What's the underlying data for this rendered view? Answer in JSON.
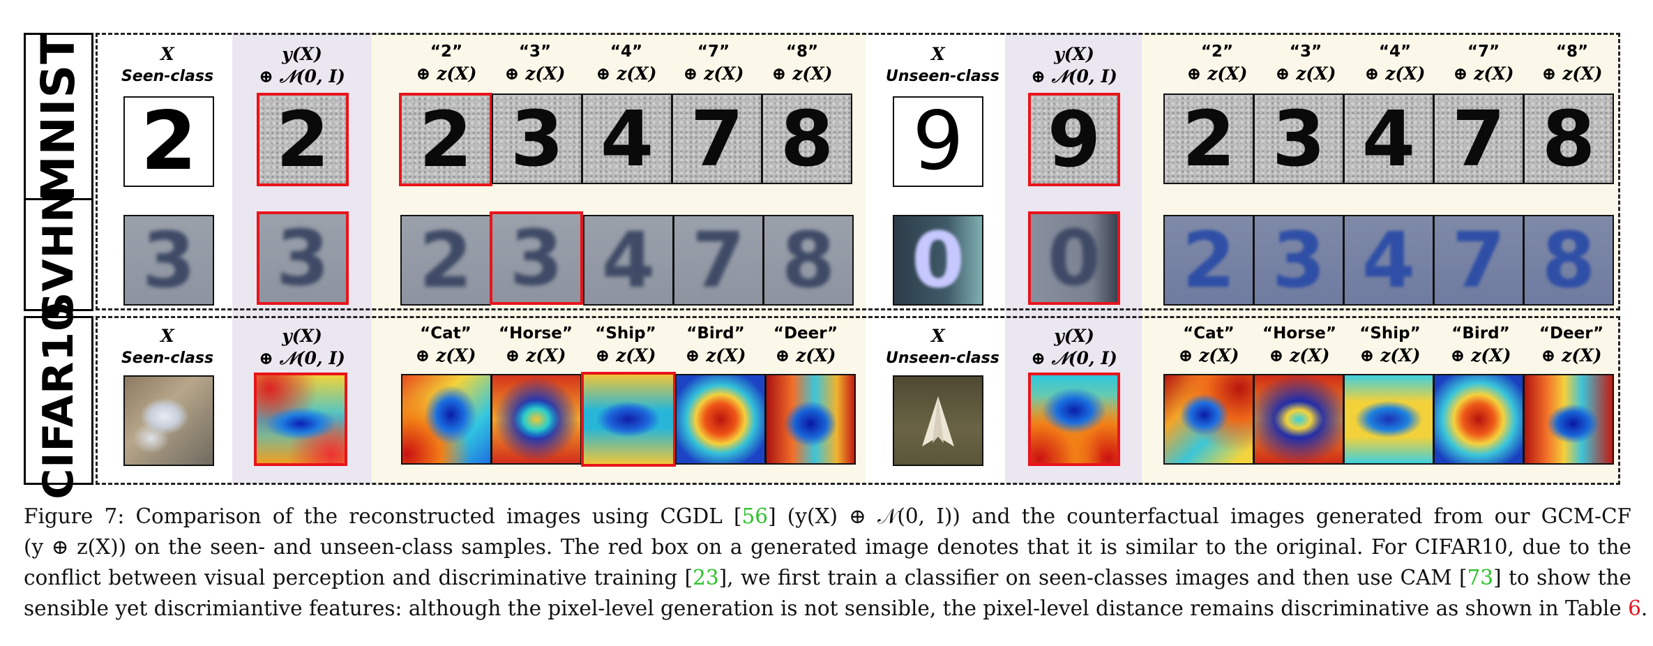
{
  "figure": {
    "row_labels": [
      "MNIST",
      "SVHN",
      "CIFAR10"
    ],
    "headers_seen": {
      "x": "X",
      "seen": "Seen-class",
      "recon_top": "y(X)",
      "recon_bottom": "⊕ 𝒩(0, I)"
    },
    "headers_unseen": {
      "x": "X",
      "unseen": "Unseen-class",
      "recon_top": "y(X)",
      "recon_bottom": "⊕ 𝒩(0, I)"
    },
    "digit_labels": [
      "“2”",
      "“3”",
      "“4”",
      "“7”",
      "“8”"
    ],
    "cifar_labels": [
      "“Cat”",
      "“Horse”",
      "“Ship”",
      "“Bird”",
      "“Deer”"
    ],
    "z_term": "⊕ z(X)",
    "tiles": {
      "mnist_seen_digit": "2",
      "mnist_unseen_digit": "9",
      "mnist_recon_seen": "2",
      "mnist_recon_unseen": "9",
      "mnist_cf": [
        "2",
        "3",
        "4",
        "7",
        "8"
      ],
      "svhn_seen_digit": "3",
      "svhn_unseen_digit": "0",
      "svhn_recon_seen": "3",
      "svhn_recon_unseen": "0",
      "svhn_cf": [
        "2",
        "3",
        "4",
        "7",
        "8"
      ]
    }
  },
  "caption": {
    "line1_a": "Figure 7: Comparison of the reconstructed images using CGDL [",
    "line1_cite": "56",
    "line1_b": "] (y(X) ⊕ 𝒩(0, I)) and the counterfactual images generated from our GCM-CF",
    "line2": "(y ⊕ z(X)) on the seen- and unseen-class samples. The red box on a generated image denotes that it is similar to the original. For CIFAR10, due to the",
    "line3_a": "conflict between visual perception and discriminative training [",
    "line3_cite1": "23",
    "line3_b": "], we first train a classifier on seen-classes images and then use CAM [",
    "line3_cite2": "73",
    "line3_c": "] to show the",
    "line4_a": "sensible yet discrimiantive features: although the pixel-level generation is not sensible, the pixel-level distance remains discriminative as shown in Table ",
    "line4_ref": "6",
    "line4_b": "."
  }
}
